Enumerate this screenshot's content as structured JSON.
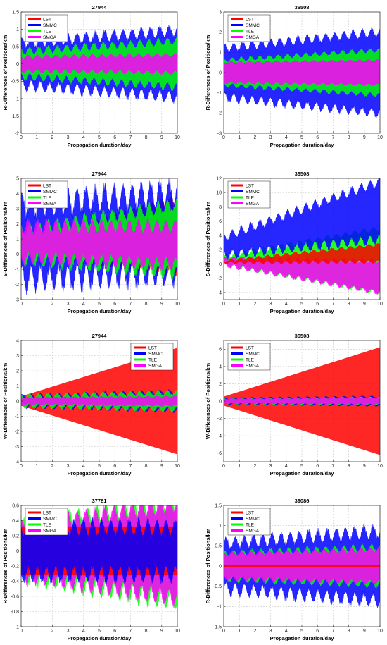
{
  "chart_data": [
    {
      "type": "line",
      "title": "27944",
      "xlabel": "Propagation duration/day",
      "ylabel": "R-Differences of Positions/km",
      "xlim": [
        0,
        10
      ],
      "ylim": [
        -2,
        1.5
      ],
      "xticks": [
        "0",
        "1",
        "2",
        "3",
        "4",
        "5",
        "6",
        "7",
        "8",
        "9",
        "10"
      ],
      "yticks": [
        "-2",
        "-1.5",
        "-1",
        "-0.5",
        "0",
        "0.5",
        "1",
        "1.5"
      ],
      "grid": true,
      "legend_position": "top-left",
      "series": [
        {
          "name": "LST",
          "color": "#ff0000",
          "center_start": 0,
          "center_end": 0,
          "amp_start": 0.03,
          "amp_end": 0.03,
          "wave": 0
        },
        {
          "name": "SMMC",
          "color": "#0000ff",
          "center_start": 0,
          "center_end": 0,
          "amp_start": 0.6,
          "amp_end": 0.95,
          "wave": 0.15
        },
        {
          "name": "TLE",
          "color": "#00ff00",
          "center_start": 0,
          "center_end": 0,
          "amp_start": 0.35,
          "amp_end": 0.65,
          "wave": 0.1
        },
        {
          "name": "SMGA",
          "color": "#ff00ff",
          "center_start": 0,
          "center_end": 0,
          "amp_start": 0.2,
          "amp_end": 0.25,
          "wave": 0.05
        }
      ]
    },
    {
      "type": "line",
      "title": "36508",
      "xlabel": "Propagation duration/day",
      "ylabel": "R-Differences of Positions/km",
      "xlim": [
        0,
        10
      ],
      "ylim": [
        -3,
        3
      ],
      "xticks": [
        "0",
        "1",
        "2",
        "3",
        "4",
        "5",
        "6",
        "7",
        "8",
        "9",
        "10"
      ],
      "yticks": [
        "-3",
        "-2",
        "-1",
        "0",
        "1",
        "2",
        "3"
      ],
      "grid": true,
      "legend_position": "top-left",
      "series": [
        {
          "name": "LST",
          "color": "#ff0000",
          "center_start": 0,
          "center_end": 0,
          "amp_start": 0.05,
          "amp_end": 0.05,
          "wave": 0
        },
        {
          "name": "SMMC",
          "color": "#0000ff",
          "center_start": 0,
          "center_end": 0,
          "amp_start": 1.2,
          "amp_end": 2.0,
          "wave": 0.2
        },
        {
          "name": "TLE",
          "color": "#00ff00",
          "center_start": 0,
          "center_end": 0,
          "amp_start": 0.6,
          "amp_end": 1.1,
          "wave": 0.1
        },
        {
          "name": "SMGA",
          "color": "#ff00ff",
          "center_start": 0,
          "center_end": 0,
          "amp_start": 0.5,
          "amp_end": 0.6,
          "wave": 0.05
        }
      ]
    },
    {
      "type": "line",
      "title": "27944",
      "xlabel": "Propagation duration/day",
      "ylabel": "S-Differences of Positions/km",
      "xlim": [
        0,
        10
      ],
      "ylim": [
        -3,
        5
      ],
      "xticks": [
        "0",
        "1",
        "2",
        "3",
        "4",
        "5",
        "6",
        "7",
        "8",
        "9",
        "10"
      ],
      "yticks": [
        "-3",
        "-2",
        "-1",
        "0",
        "1",
        "2",
        "3",
        "4",
        "5"
      ],
      "grid": true,
      "legend_position": "top-left",
      "series": [
        {
          "name": "LST",
          "color": "#ff0000",
          "center_start": 0.4,
          "center_end": 1.2,
          "amp_start": 0.1,
          "amp_end": 2.4,
          "wave": 0.3
        },
        {
          "name": "SMMC",
          "color": "#0000ff",
          "center_start": 0.8,
          "center_end": 1.4,
          "amp_start": 2.4,
          "amp_end": 2.6,
          "wave": 0.8
        },
        {
          "name": "TLE",
          "color": "#00ff00",
          "center_start": 0.6,
          "center_end": 1.0,
          "amp_start": 0.9,
          "amp_end": 2.2,
          "wave": 0.4
        },
        {
          "name": "SMGA",
          "color": "#ff00ff",
          "center_start": 0.8,
          "center_end": 0.6,
          "amp_start": 1.0,
          "amp_end": 1.2,
          "wave": 0.4
        }
      ]
    },
    {
      "type": "line",
      "title": "36508",
      "xlabel": "Propagation duration/day",
      "ylabel": "S-Differences of Positions/km",
      "xlim": [
        0,
        10
      ],
      "ylim": [
        -5,
        12
      ],
      "xticks": [
        "0",
        "1",
        "2",
        "3",
        "4",
        "5",
        "6",
        "7",
        "8",
        "9",
        "10"
      ],
      "yticks": [
        "-4",
        "-2",
        "0",
        "2",
        "4",
        "6",
        "8",
        "10",
        "12"
      ],
      "grid": true,
      "legend_position": "top-left",
      "series": [
        {
          "name": "TLE",
          "color": "#00ff00",
          "center_start": 0.5,
          "center_end": 0.5,
          "amp_start": 0.5,
          "amp_end": 4.5,
          "wave": 0.3
        },
        {
          "name": "SMGA",
          "color": "#ff00ff",
          "center_start": 0.3,
          "center_end": -1.8,
          "amp_start": 0.4,
          "amp_end": 2.2,
          "wave": 0.3
        },
        {
          "name": "SMMC",
          "color": "#0000ff",
          "center_start": 2.5,
          "center_end": 7.5,
          "amp_start": 1.2,
          "amp_end": 4.0,
          "wave": 0.6
        },
        {
          "name": "LST",
          "color": "#ff0000",
          "center_start": 0.3,
          "center_end": 1.5,
          "amp_start": 0.1,
          "amp_end": 1.2,
          "wave": 0.2
        }
      ]
    },
    {
      "type": "line",
      "title": "27944",
      "xlabel": "Propagation duration/day",
      "ylabel": "W-Differences of Positions/km",
      "xlim": [
        0,
        10
      ],
      "ylim": [
        -4,
        4
      ],
      "xticks": [
        "0",
        "1",
        "2",
        "3",
        "4",
        "5",
        "6",
        "7",
        "8",
        "9",
        "10"
      ],
      "yticks": [
        "-4",
        "-3",
        "-2",
        "-1",
        "0",
        "1",
        "2",
        "3",
        "4"
      ],
      "grid": true,
      "legend_position": "top-right",
      "series": [
        {
          "name": "LST",
          "color": "#ff0000",
          "center_start": 0,
          "center_end": 0,
          "amp_start": 0.3,
          "amp_end": 3.5,
          "wave": 0
        },
        {
          "name": "SMMC",
          "color": "#0000ff",
          "center_start": 0,
          "center_end": 0,
          "amp_start": 0.3,
          "amp_end": 0.6,
          "wave": 0.15
        },
        {
          "name": "TLE",
          "color": "#00ff00",
          "center_start": 0,
          "center_end": 0,
          "amp_start": 0.3,
          "amp_end": 0.55,
          "wave": 0.15
        },
        {
          "name": "SMGA",
          "color": "#ff00ff",
          "center_start": 0,
          "center_end": 0,
          "amp_start": 0.2,
          "amp_end": 0.3,
          "wave": 0.05
        }
      ]
    },
    {
      "type": "line",
      "title": "36508",
      "xlabel": "Propagation duration/day",
      "ylabel": "W-Differences of Positions/km",
      "xlim": [
        0,
        10
      ],
      "ylim": [
        -7,
        7
      ],
      "xticks": [
        "0",
        "1",
        "2",
        "3",
        "4",
        "5",
        "6",
        "7",
        "8",
        "9",
        "10"
      ],
      "yticks": [
        "-6",
        "-4",
        "-2",
        "0",
        "2",
        "4",
        "6"
      ],
      "grid": true,
      "legend_position": "top-left",
      "series": [
        {
          "name": "LST",
          "color": "#ff0000",
          "center_start": 0,
          "center_end": 0,
          "amp_start": 0.5,
          "amp_end": 6.2,
          "wave": 0
        },
        {
          "name": "SMMC",
          "color": "#0000ff",
          "center_start": 0,
          "center_end": 0,
          "amp_start": 0.3,
          "amp_end": 0.5,
          "wave": 0.1
        },
        {
          "name": "TLE",
          "color": "#00ff00",
          "center_start": 0,
          "center_end": 0,
          "amp_start": 0.25,
          "amp_end": 0.4,
          "wave": 0.1
        },
        {
          "name": "SMGA",
          "color": "#ff00ff",
          "center_start": 0,
          "center_end": 0,
          "amp_start": 0.25,
          "amp_end": 0.35,
          "wave": 0.05
        }
      ]
    },
    {
      "type": "line",
      "title": "37781",
      "xlabel": "Propagation duration/day",
      "ylabel": "R-Differences of Positions/km",
      "xlim": [
        0,
        10
      ],
      "ylim": [
        -1,
        0.6
      ],
      "xticks": [
        "0",
        "1",
        "2",
        "3",
        "4",
        "5",
        "6",
        "7",
        "8",
        "9",
        "10"
      ],
      "yticks": [
        "-1",
        "-0.8",
        "-0.6",
        "-0.4",
        "-0.2",
        "0",
        "0.2",
        "0.4",
        "0.6"
      ],
      "grid": true,
      "legend_position": "top-left",
      "series": [
        {
          "name": "TLE",
          "color": "#00ff00",
          "center_start": 0,
          "center_end": 0,
          "amp_start": 0.3,
          "amp_end": 0.65,
          "wave": 0.12
        },
        {
          "name": "SMGA",
          "color": "#ff00ff",
          "center_start": 0,
          "center_end": 0,
          "amp_start": 0.3,
          "amp_end": 0.62,
          "wave": 0.1
        },
        {
          "name": "LST",
          "color": "#ff0000",
          "center_start": 0,
          "center_end": 0,
          "amp_start": 0.32,
          "amp_end": 0.32,
          "wave": 0
        },
        {
          "name": "SMMC",
          "color": "#0000ff",
          "center_start": 0,
          "center_end": 0,
          "amp_start": 0.3,
          "amp_end": 0.3,
          "wave": 0.1
        }
      ]
    },
    {
      "type": "line",
      "title": "39086",
      "xlabel": "Propagation duration/day",
      "ylabel": "R-Differences of Positions/km",
      "xlim": [
        0,
        10
      ],
      "ylim": [
        -1.5,
        1.5
      ],
      "xticks": [
        "0",
        "1",
        "2",
        "3",
        "4",
        "5",
        "6",
        "7",
        "8",
        "9",
        "10"
      ],
      "yticks": [
        "-1.5",
        "-1",
        "-0.5",
        "0",
        "0.5",
        "1",
        "1.5"
      ],
      "grid": true,
      "legend_position": "top-left",
      "series": [
        {
          "name": "SMMC",
          "color": "#0000ff",
          "center_start": 0,
          "center_end": 0,
          "amp_start": 0.55,
          "amp_end": 0.85,
          "wave": 0.15
        },
        {
          "name": "TLE",
          "color": "#00ff00",
          "center_start": 0,
          "center_end": 0,
          "amp_start": 0.3,
          "amp_end": 0.45,
          "wave": 0.08
        },
        {
          "name": "SMGA",
          "color": "#ff00ff",
          "center_start": 0,
          "center_end": 0,
          "amp_start": 0.3,
          "amp_end": 0.4,
          "wave": 0.05
        },
        {
          "name": "LST",
          "color": "#ff0000",
          "center_start": 0,
          "center_end": 0,
          "amp_start": 0.03,
          "amp_end": 0.03,
          "wave": 0
        }
      ]
    }
  ]
}
